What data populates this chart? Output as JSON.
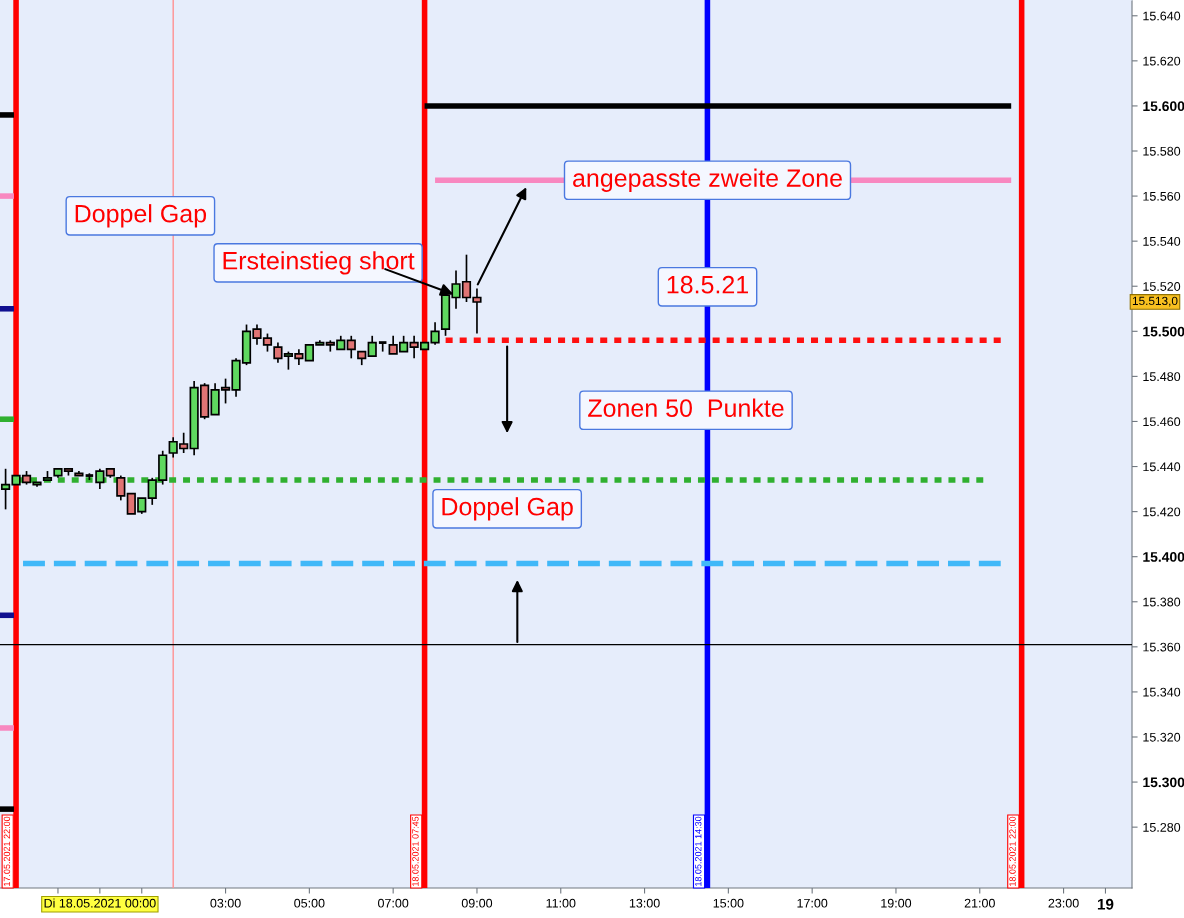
{
  "chart_data": {
    "type": "candlestick",
    "x": [
      "2021-05-17T21:45",
      "2021-05-17T22:00",
      "2021-05-17T22:15",
      "2021-05-17T22:30",
      "2021-05-17T22:45",
      "2021-05-17T23:00",
      "2021-05-17T23:15",
      "2021-05-17T23:30",
      "2021-05-17T23:45",
      "2021-05-18T00:00",
      "2021-05-18T00:15",
      "2021-05-18T00:30",
      "2021-05-18T00:45",
      "2021-05-18T01:00",
      "2021-05-18T01:15",
      "2021-05-18T01:30",
      "2021-05-18T01:45",
      "2021-05-18T02:00",
      "2021-05-18T02:15",
      "2021-05-18T02:30",
      "2021-05-18T02:45",
      "2021-05-18T03:00",
      "2021-05-18T03:15",
      "2021-05-18T03:30",
      "2021-05-18T03:45",
      "2021-05-18T04:00",
      "2021-05-18T04:15",
      "2021-05-18T04:30",
      "2021-05-18T04:45",
      "2021-05-18T05:00",
      "2021-05-18T05:15",
      "2021-05-18T05:30",
      "2021-05-18T05:45",
      "2021-05-18T06:00",
      "2021-05-18T06:15",
      "2021-05-18T06:30",
      "2021-05-18T06:45",
      "2021-05-18T07:00",
      "2021-05-18T07:15",
      "2021-05-18T07:30",
      "2021-05-18T07:45",
      "2021-05-18T08:00",
      "2021-05-18T08:15",
      "2021-05-18T08:30",
      "2021-05-18T08:45",
      "2021-05-18T09:00"
    ],
    "ohlc": [
      [
        15430,
        15439,
        15421,
        15432
      ],
      [
        15432,
        15436,
        15432,
        15436
      ],
      [
        15436,
        15438,
        15432,
        15433
      ],
      [
        15432,
        15433,
        15431,
        15433
      ],
      [
        15434,
        15438,
        15434,
        15435
      ],
      [
        15436,
        15439,
        15435,
        15439
      ],
      [
        15439,
        15439,
        15436,
        15438
      ],
      [
        15437,
        15438,
        15436,
        15436
      ],
      [
        15436,
        15437,
        15434,
        15436
      ],
      [
        15433,
        15439,
        15430,
        15438
      ],
      [
        15439,
        15439,
        15435,
        15436
      ],
      [
        15435,
        15436,
        15425,
        15427
      ],
      [
        15428,
        15428,
        15419,
        15419
      ],
      [
        15420,
        15426,
        15419,
        15426
      ],
      [
        15426,
        15435,
        15423,
        15434
      ],
      [
        15434,
        15447,
        15432,
        15445
      ],
      [
        15446,
        15453,
        15444,
        15451
      ],
      [
        15450,
        15455,
        15446,
        15448
      ],
      [
        15448,
        15478,
        15445,
        15475
      ],
      [
        15476,
        15477,
        15461,
        15462
      ],
      [
        15463,
        15477,
        15463,
        15474
      ],
      [
        15475,
        15479,
        15468,
        15474
      ],
      [
        15474,
        15488,
        15471,
        15487
      ],
      [
        15486,
        15503,
        15485,
        15500
      ],
      [
        15501,
        15503,
        15494,
        15497
      ],
      [
        15497,
        15499,
        15491,
        15494
      ],
      [
        15493,
        15495,
        15486,
        15488
      ],
      [
        15489,
        15491,
        15483,
        15490
      ],
      [
        15490,
        15492,
        15485,
        15488
      ],
      [
        15487,
        15494,
        15487,
        15494
      ],
      [
        15494,
        15496,
        15494,
        15495
      ],
      [
        15495,
        15496,
        15491,
        15494
      ],
      [
        15492,
        15498,
        15492,
        15496
      ],
      [
        15496,
        15498,
        15488,
        15492
      ],
      [
        15491,
        15491,
        15485,
        15488
      ],
      [
        15489,
        15498,
        15489,
        15495
      ],
      [
        15495,
        15495,
        15491,
        15495
      ],
      [
        15494,
        15498,
        15490,
        15490
      ],
      [
        15491,
        15498,
        15491,
        15495
      ],
      [
        15495,
        15498,
        15488,
        15493
      ],
      [
        15492,
        15495,
        15492,
        15495
      ],
      [
        15495,
        15504,
        15494,
        15500
      ],
      [
        15501,
        15516,
        15498,
        15516
      ],
      [
        15515,
        15527,
        15510,
        15521
      ],
      [
        15522,
        15534,
        15513,
        15515
      ],
      [
        15515,
        15519,
        15499,
        15513
      ]
    ],
    "series": [
      {
        "type": "line",
        "color": "#000000",
        "line_style": "solid",
        "x": [
          "2021-05-18T07:45",
          "2021-05-18T21:45"
        ],
        "values": [
          15600,
          15600
        ]
      },
      {
        "type": "line",
        "color": "#f888c0",
        "line_style": "solid",
        "x": [
          "2021-05-18T08:00",
          "2021-05-18T21:45"
        ],
        "values": [
          15567,
          15567
        ]
      },
      {
        "type": "line",
        "color": "#ff1010",
        "line_style": "dotted",
        "x": [
          "2021-05-18T07:55",
          "2021-05-18T21:30"
        ],
        "values": [
          15496,
          15496
        ]
      },
      {
        "type": "line",
        "color": "#30b030",
        "line_style": "dotted",
        "x": [
          "2021-05-17T22:00",
          "2021-05-18T21:05"
        ],
        "values": [
          15434,
          15434
        ]
      },
      {
        "type": "line",
        "color": "#40b8f8",
        "line_style": "dashed",
        "x": [
          "2021-05-17T22:10",
          "2021-05-18T21:30"
        ],
        "values": [
          15397,
          15397
        ]
      },
      {
        "type": "line",
        "color": "#000000",
        "line_style": "solid",
        "x": [
          "2021-05-17T21:37",
          "2021-05-17T21:57"
        ],
        "values": [
          15596,
          15596
        ]
      },
      {
        "type": "line",
        "color": "#f888c0",
        "line_style": "solid",
        "x": [
          "2021-05-17T21:37",
          "2021-05-17T21:57"
        ],
        "values": [
          15560,
          15560
        ]
      },
      {
        "type": "line",
        "color": "#101090",
        "line_style": "solid",
        "x": [
          "2021-05-17T21:37",
          "2021-05-17T21:57"
        ],
        "values": [
          15510,
          15510
        ]
      },
      {
        "type": "line",
        "color": "#30b030",
        "line_style": "dashed",
        "x": [
          "2021-05-17T21:37",
          "2021-05-17T21:57"
        ],
        "values": [
          15461,
          15461
        ]
      },
      {
        "type": "line",
        "color": "#101090",
        "line_style": "solid",
        "x": [
          "2021-05-17T21:37",
          "2021-05-17T21:57"
        ],
        "values": [
          15374,
          15374
        ]
      },
      {
        "type": "line",
        "color": "#f888c0",
        "line_style": "solid",
        "x": [
          "2021-05-17T21:37",
          "2021-05-17T21:57"
        ],
        "values": [
          15324,
          15324
        ]
      },
      {
        "type": "line",
        "color": "#000000",
        "line_style": "solid",
        "x": [
          "2021-05-17T21:37",
          "2021-05-17T21:57"
        ],
        "values": [
          15288,
          15288
        ]
      }
    ],
    "ref_lines": [
      {
        "axis": "x",
        "value": "2021-05-17T22:00",
        "label": "17.05.2021 22:00",
        "color": "#ff0000"
      },
      {
        "axis": "x",
        "value": "2021-05-18T01:45",
        "label": null,
        "color": "#ff9090"
      },
      {
        "axis": "x",
        "value": "2021-05-18T07:45",
        "label": "18.05.2021 07:45",
        "color": "#ff0000"
      },
      {
        "axis": "x",
        "value": "2021-05-18T14:30",
        "label": "18.05.2021 14:30",
        "color": "#0000ff"
      },
      {
        "axis": "x",
        "value": "2021-05-18T22:00",
        "label": "18.05.2021 22:00",
        "color": "#ff0000"
      },
      {
        "axis": "y",
        "value": 15361,
        "label": null,
        "color": "#000000"
      }
    ],
    "annotations": [
      "Doppel Gap",
      {
        "text": "Ersteinstieg short",
        "x": "2021-05-18T08:30",
        "y": 15516
      },
      "angepasste zweite Zone",
      "18.5.21",
      "Zonen 50  Punkte",
      "Doppel Gap",
      "15.513,0"
    ],
    "xlim": [
      "2021-05-17T21:37",
      "2021-05-19T00:38"
    ],
    "xticks": [
      {
        "value": "2021-05-17T23:00",
        "label": null
      },
      {
        "value": "2021-05-18T00:00",
        "label": "Di 18.05.2021 00:00"
      },
      {
        "value": "2021-05-18T01:00",
        "label": null
      },
      {
        "value": "2021-05-18T03:00",
        "label": "03:00"
      },
      {
        "value": "2021-05-18T05:00",
        "label": "05:00"
      },
      {
        "value": "2021-05-18T07:00",
        "label": "07:00"
      },
      {
        "value": "2021-05-18T09:00",
        "label": "09:00"
      },
      {
        "value": "2021-05-18T11:00",
        "label": "11:00"
      },
      {
        "value": "2021-05-18T13:00",
        "label": "13:00"
      },
      {
        "value": "2021-05-18T15:00",
        "label": "15:00"
      },
      {
        "value": "2021-05-18T17:00",
        "label": "17:00"
      },
      {
        "value": "2021-05-18T19:00",
        "label": "19:00"
      },
      {
        "value": "2021-05-18T21:00",
        "label": "21:00"
      },
      {
        "value": "2021-05-18T23:00",
        "label": "23:00"
      },
      {
        "value": "2021-05-19T00:00",
        "label": "19"
      }
    ],
    "ylim": [
      15253,
      15647
    ],
    "yticks": [
      {
        "value": 15280,
        "label": "15.280"
      },
      {
        "value": 15300,
        "label": "15.300"
      },
      {
        "value": 15320,
        "label": "15.320"
      },
      {
        "value": 15340,
        "label": "15.340"
      },
      {
        "value": 15360,
        "label": "15.360"
      },
      {
        "value": 15380,
        "label": "15.380"
      },
      {
        "value": 15400,
        "label": "15.400"
      },
      {
        "value": 15420,
        "label": "15.420"
      },
      {
        "value": 15440,
        "label": "15.440"
      },
      {
        "value": 15460,
        "label": "15.460"
      },
      {
        "value": 15480,
        "label": "15.480"
      },
      {
        "value": 15500,
        "label": "15.500"
      },
      {
        "value": 15520,
        "label": "15.520"
      },
      {
        "value": 15540,
        "label": "15.540"
      },
      {
        "value": 15560,
        "label": "15.560"
      },
      {
        "value": 15580,
        "label": "15.580"
      },
      {
        "value": 15600,
        "label": "15.600"
      },
      {
        "value": 15620,
        "label": "15.620"
      },
      {
        "value": 15640,
        "label": "15.640"
      }
    ],
    "grid": false,
    "legend": false
  }
}
